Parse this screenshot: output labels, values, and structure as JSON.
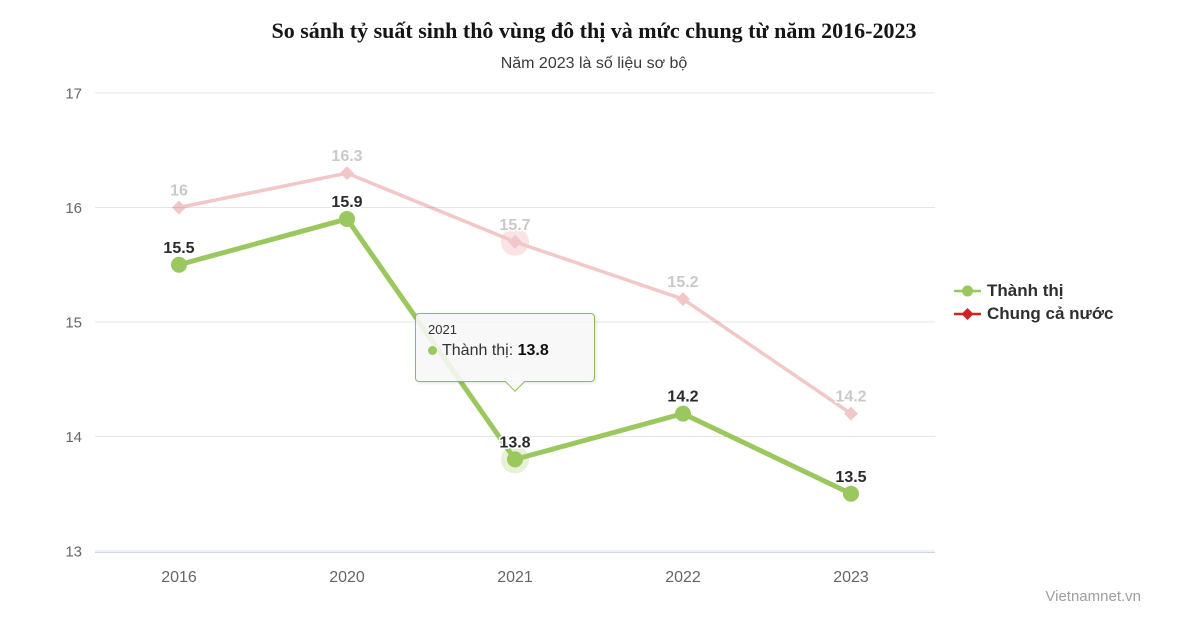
{
  "title": "So sánh tỷ suất sinh thô vùng đô thị và mức chung từ năm 2016-2023",
  "subtitle": "Năm 2023 là số liệu sơ bộ",
  "watermark": "Vietnamnet.vn",
  "colors": {
    "urban": "#9ac85e",
    "national": "#cc2427",
    "grid_line": "#e6e6e6",
    "axis_line": "#ccd6eb",
    "tick_label": "#666666",
    "data_label": "#2b2b2b",
    "tooltip_border": "#8fbb52"
  },
  "chart_data": {
    "type": "line",
    "categories": [
      "2016",
      "2020",
      "2021",
      "2022",
      "2023"
    ],
    "series": [
      {
        "name": "Thành thị",
        "values": [
          15.5,
          15.9,
          13.8,
          14.2,
          13.5
        ],
        "labels": [
          "15.5",
          "15.9",
          "13.8",
          "14.2",
          "13.5"
        ],
        "color": "#9ac85e",
        "marker": "circle",
        "dimmed": false,
        "line_width": 5
      },
      {
        "name": "Chung cả nước",
        "values": [
          16,
          16.3,
          15.7,
          15.2,
          14.2
        ],
        "labels": [
          "16",
          "16.3",
          "15.7",
          "15.2",
          "14.2"
        ],
        "color": "#cc2427",
        "marker": "diamond",
        "dimmed": true,
        "line_width": 3.5
      }
    ],
    "hover_index": 2,
    "hover_category": "2021",
    "ylim": [
      13,
      17
    ],
    "yticks": [
      13,
      14,
      15,
      16,
      17
    ],
    "grid": true,
    "legend_position": "right",
    "xlabel": "",
    "ylabel": ""
  },
  "legend": {
    "items": [
      {
        "label": "Thành thị",
        "color": "#9ac85e",
        "marker": "circle"
      },
      {
        "label": "Chung cả nước",
        "color": "#cc2427",
        "marker": "diamond"
      }
    ]
  },
  "tooltip": {
    "header": "2021",
    "series_label": "Thành thị",
    "separator": ": ",
    "value": "13.8",
    "marker_color": "#9ac85e"
  }
}
